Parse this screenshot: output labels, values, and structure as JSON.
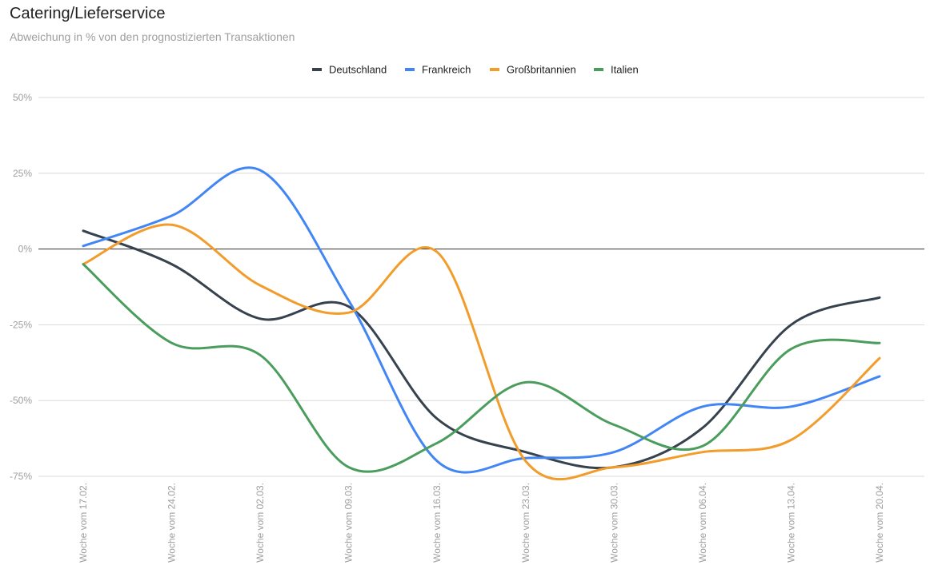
{
  "chart_data": {
    "type": "line",
    "title": "Catering/Lieferservice",
    "subtitle": "Abweichung in % von den prognostizierten Transaktionen",
    "categories": [
      "Woche vom 17.02.",
      "Woche vom 24.02.",
      "Woche vom 02.03.",
      "Woche vom 09.03.",
      "Woche vom 16.03.",
      "Woche vom 23.03.",
      "Woche vom 30.03.",
      "Woche vom 06.04.",
      "Woche vom 13.04.",
      "Woche vom 20.04."
    ],
    "ylim": [
      -75,
      50
    ],
    "yticks": [
      50,
      25,
      0,
      -25,
      -50,
      -75
    ],
    "ytick_labels": [
      "50%",
      "25%",
      "0%",
      "-25%",
      "-50%",
      "-75%"
    ],
    "legend_position": "top-center",
    "series": [
      {
        "name": "Deutschland",
        "color": "#37424f",
        "values": [
          6,
          -5,
          -23,
          -19,
          -56,
          -67,
          -72,
          -59,
          -25,
          -16
        ]
      },
      {
        "name": "Frankreich",
        "color": "#4285f4",
        "values": [
          1,
          11,
          26,
          -17,
          -70,
          -69,
          -67,
          -52,
          -52,
          -42
        ]
      },
      {
        "name": "Großbritannien",
        "color": "#f29c2b",
        "values": [
          -5,
          8,
          -12,
          -21,
          -1,
          -70,
          -72,
          -67,
          -63,
          -36
        ]
      },
      {
        "name": "Italien",
        "color": "#4a9d5c",
        "values": [
          -5,
          -31,
          -35,
          -72,
          -64,
          -44,
          -58,
          -65,
          -33,
          -31
        ]
      }
    ]
  }
}
